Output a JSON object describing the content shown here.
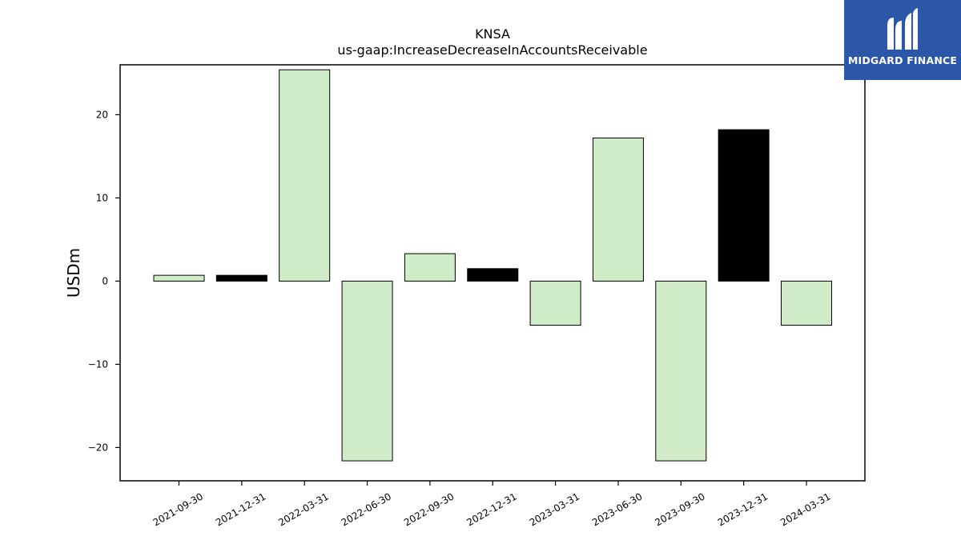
{
  "brand": {
    "name": "MIDGARD FINANCE",
    "background": "#2b57a8"
  },
  "chart_data": {
    "type": "bar",
    "title": "KNSA",
    "subtitle": "us-gaap:IncreaseDecreaseInAccountsReceivable",
    "xlabel": "",
    "ylabel": "USDm",
    "ylim": [
      -24,
      26
    ],
    "yticks": [
      -20,
      -10,
      0,
      10,
      20
    ],
    "grid": false,
    "categories": [
      "2021-09-30",
      "2021-12-31",
      "2022-03-31",
      "2022-06-30",
      "2022-09-30",
      "2022-12-31",
      "2023-03-31",
      "2023-06-30",
      "2023-09-30",
      "2023-12-31",
      "2024-03-31"
    ],
    "values": [
      0.7,
      0.7,
      25.4,
      -21.6,
      3.3,
      1.5,
      -5.3,
      17.2,
      -21.6,
      18.2,
      -5.3
    ],
    "bar_colors": [
      "#d0ebc8",
      "#000000",
      "#d0ebc8",
      "#d0ebc8",
      "#d0ebc8",
      "#000000",
      "#d0ebc8",
      "#d0ebc8",
      "#d0ebc8",
      "#000000",
      "#d0ebc8"
    ]
  }
}
